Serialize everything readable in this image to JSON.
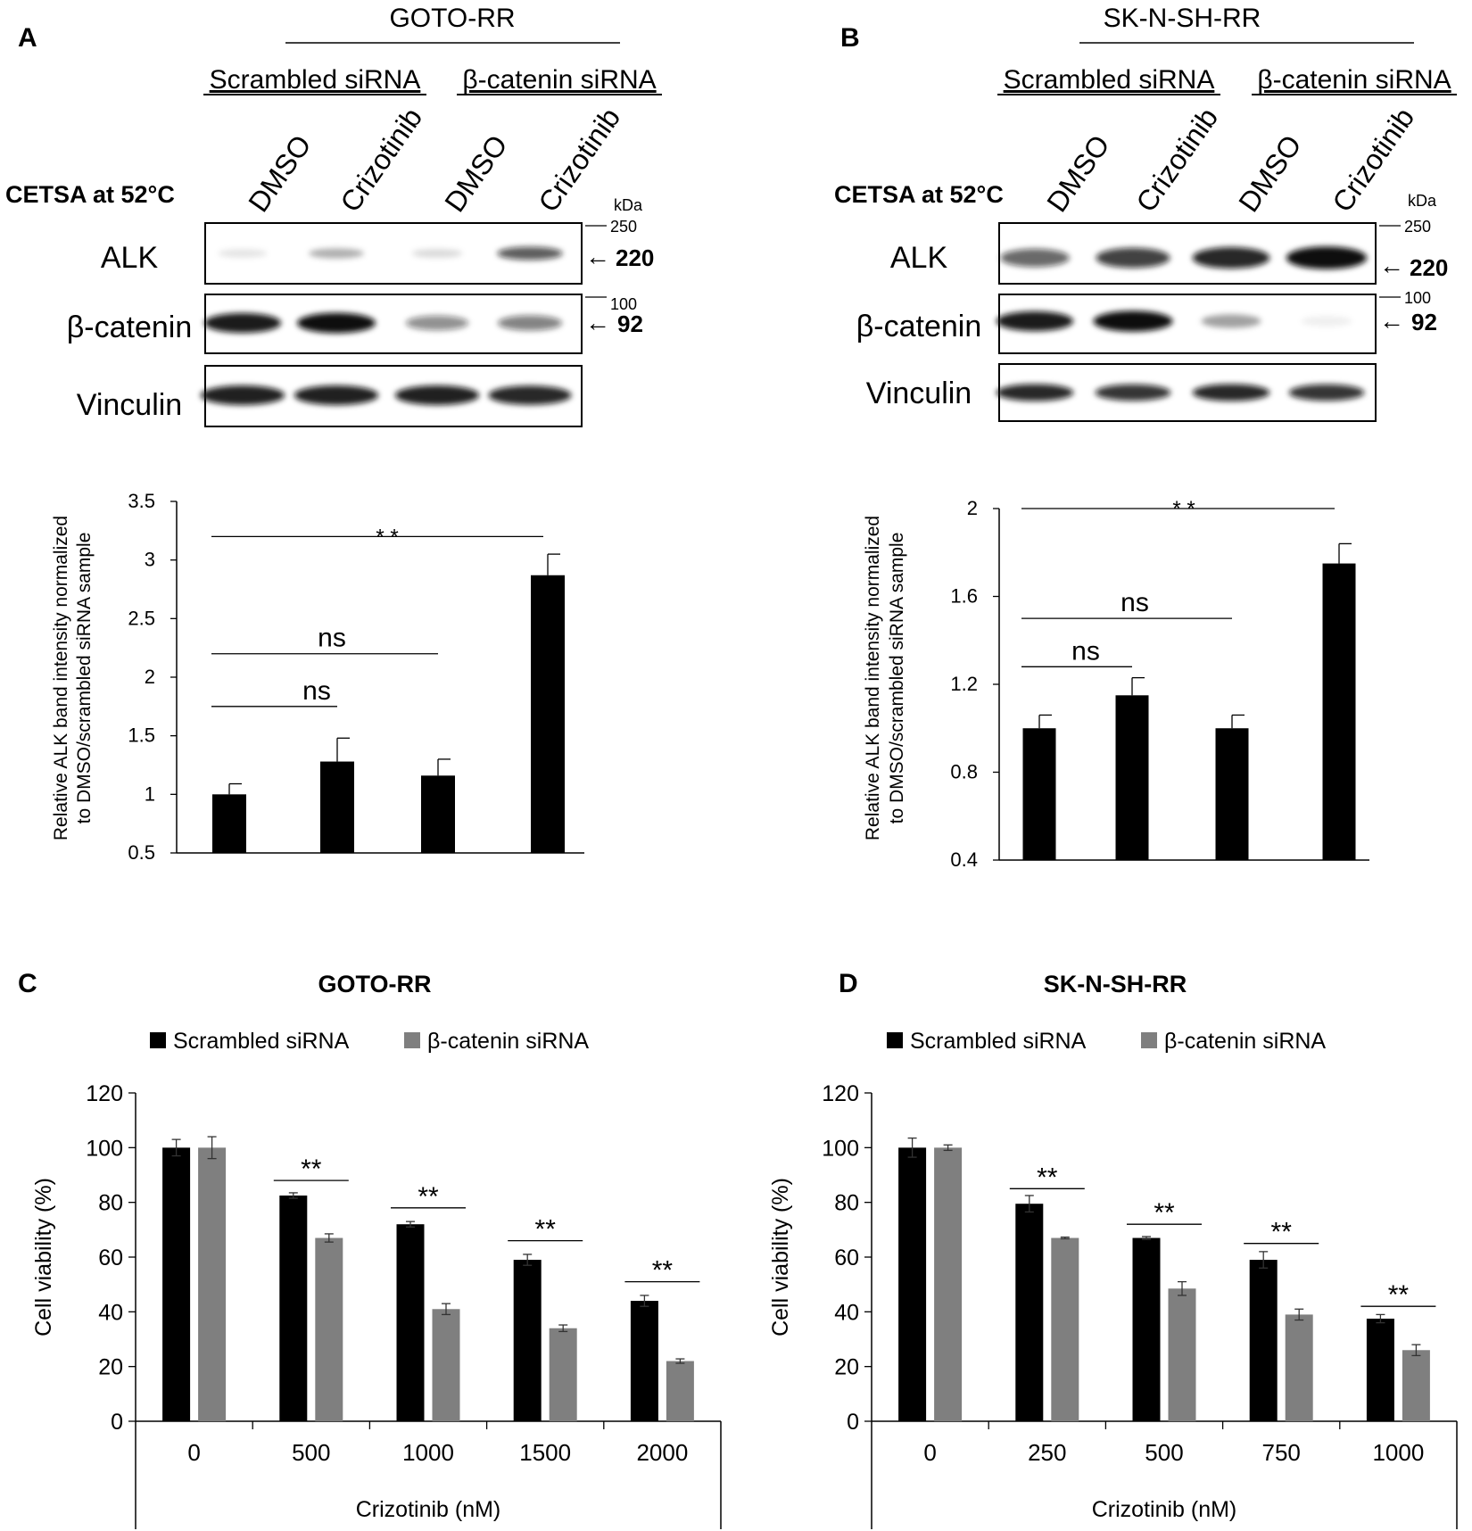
{
  "colors": {
    "black": "#000000",
    "gray": "#7f7f7f",
    "band": "#111111"
  },
  "panelA": {
    "letter": "A",
    "cell_line": "GOTO-RR",
    "group1": "Scrambled siRNA",
    "group2": "β-catenin siRNA",
    "lanes": [
      "DMSO",
      "Crizotinib",
      "DMSO",
      "Crizotinib"
    ],
    "cetsa_label": "CETSA at 52°C",
    "kda": "kDa",
    "blots": [
      {
        "label": "ALK",
        "marker": "250",
        "size": "220",
        "intensities": [
          0.1,
          0.3,
          0.14,
          0.65
        ]
      },
      {
        "label": "β-catenin",
        "marker": "100",
        "size": "92",
        "intensities": [
          0.9,
          0.95,
          0.45,
          0.5
        ]
      },
      {
        "label": "Vinculin",
        "marker": "",
        "size": "",
        "intensities": [
          0.88,
          0.88,
          0.88,
          0.85
        ]
      }
    ]
  },
  "panelB": {
    "letter": "B",
    "cell_line": "SK-N-SH-RR",
    "group1": "Scrambled siRNA",
    "group2": "β-catenin siRNA",
    "lanes": [
      "DMSO",
      "Crizotinib",
      "DMSO",
      "Crizotinib"
    ],
    "cetsa_label": "CETSA at 52°C",
    "kda": "kDa",
    "blots": [
      {
        "label": "ALK",
        "marker": "250",
        "size": "220",
        "intensities": [
          0.6,
          0.75,
          0.85,
          0.95
        ]
      },
      {
        "label": "β-catenin",
        "marker": "100",
        "size": "92",
        "intensities": [
          0.9,
          0.98,
          0.35,
          0.06
        ]
      },
      {
        "label": "Vinculin",
        "marker": "",
        "size": "",
        "intensities": [
          0.85,
          0.8,
          0.85,
          0.8
        ]
      }
    ]
  },
  "chart_data": [
    {
      "id": "A-chart",
      "type": "bar",
      "title": "",
      "xlabel": "",
      "ylabel": [
        "Relative ALK band intensity normalized",
        "to DMSO/scrambled siRNA sample"
      ],
      "categories": [
        "DMSO (Scrambled siRNA)",
        "Crizotinib (Scrambled siRNA)",
        "DMSO (β-catenin siRNA)",
        "Crizotinib (β-catenin siRNA)"
      ],
      "values": [
        1.0,
        1.28,
        1.16,
        2.87
      ],
      "errors": [
        0.09,
        0.2,
        0.14,
        0.18
      ],
      "ylim": [
        0.5,
        3.5
      ],
      "yticks": [
        0.5,
        1,
        1.5,
        2,
        2.5,
        3,
        3.5
      ],
      "ytick_labels": [
        "0.5",
        "1",
        "1.5",
        "2",
        "2.5",
        "3",
        "3.5"
      ],
      "significance": [
        {
          "from": 0,
          "to": 1,
          "label": "ns",
          "y": 1.75
        },
        {
          "from": 0,
          "to": 2,
          "label": "ns",
          "y": 2.2
        },
        {
          "from": 0,
          "to": 3,
          "label": "* *",
          "y": 3.2
        }
      ]
    },
    {
      "id": "B-chart",
      "type": "bar",
      "title": "",
      "xlabel": "",
      "ylabel": [
        "Relative ALK band intensity normalized",
        "to DMSO/scrambled siRNA sample"
      ],
      "categories": [
        "DMSO (Scrambled siRNA)",
        "Crizotinib (Scrambled siRNA)",
        "DMSO (β-catenin siRNA)",
        "Crizotinib (β-catenin siRNA)"
      ],
      "values": [
        1.0,
        1.15,
        1.0,
        1.75
      ],
      "errors": [
        0.06,
        0.08,
        0.06,
        0.09
      ],
      "ylim": [
        0.4,
        2.0
      ],
      "yticks": [
        0.4,
        0.8,
        1.2,
        1.6,
        2.0
      ],
      "ytick_labels": [
        "0.4",
        "0.8",
        "1.2",
        "1.6",
        "2"
      ],
      "significance": [
        {
          "from": 0,
          "to": 1,
          "label": "ns",
          "y": 1.28
        },
        {
          "from": 0,
          "to": 2,
          "label": "ns",
          "y": 1.5
        },
        {
          "from": 0,
          "to": 3,
          "label": "* *",
          "y": 2.0
        }
      ]
    },
    {
      "id": "C-chart",
      "type": "bar",
      "letter": "C",
      "title": "GOTO-RR",
      "xlabel": "Crizotinib (nM)",
      "ylabel": "Cell viability (%)",
      "categories": [
        "0",
        "500",
        "1000",
        "1500",
        "2000"
      ],
      "series": [
        {
          "name": "Scrambled siRNA",
          "color": "#000000",
          "values": [
            100,
            82.5,
            72,
            59,
            44
          ],
          "errors": [
            3,
            1,
            1,
            2,
            2
          ]
        },
        {
          "name": "β-catenin siRNA",
          "color": "#7f7f7f",
          "values": [
            100,
            67,
            41,
            34,
            22
          ],
          "errors": [
            4,
            1.5,
            2,
            1.2,
            0.8
          ]
        }
      ],
      "ylim": [
        0,
        120
      ],
      "yticks": [
        0,
        20,
        40,
        60,
        80,
        100,
        120
      ],
      "ytick_labels": [
        "0",
        "20",
        "40",
        "60",
        "80",
        "100",
        "120"
      ],
      "significance": [
        {
          "category": 1,
          "label": "**",
          "y": 88
        },
        {
          "category": 2,
          "label": "**",
          "y": 78
        },
        {
          "category": 3,
          "label": "**",
          "y": 66
        },
        {
          "category": 4,
          "label": "**",
          "y": 51
        }
      ],
      "legend": "top"
    },
    {
      "id": "D-chart",
      "type": "bar",
      "letter": "D",
      "title": "SK-N-SH-RR",
      "xlabel": "Crizotinib (nM)",
      "ylabel": "Cell viability (%)",
      "categories": [
        "0",
        "250",
        "500",
        "750",
        "1000"
      ],
      "series": [
        {
          "name": "Scrambled siRNA",
          "color": "#000000",
          "values": [
            100,
            79.5,
            67,
            59,
            37.5
          ],
          "errors": [
            3.5,
            3,
            0.5,
            3,
            1.5
          ]
        },
        {
          "name": "β-catenin siRNA",
          "color": "#7f7f7f",
          "values": [
            100,
            67,
            48.5,
            39,
            26
          ],
          "errors": [
            1,
            0.3,
            2.5,
            2,
            2
          ]
        }
      ],
      "ylim": [
        0,
        120
      ],
      "yticks": [
        0,
        20,
        40,
        60,
        80,
        100,
        120
      ],
      "ytick_labels": [
        "0",
        "20",
        "40",
        "60",
        "80",
        "100",
        "120"
      ],
      "significance": [
        {
          "category": 1,
          "label": "**",
          "y": 85
        },
        {
          "category": 2,
          "label": "**",
          "y": 72
        },
        {
          "category": 3,
          "label": "**",
          "y": 65
        },
        {
          "category": 4,
          "label": "**",
          "y": 42
        }
      ],
      "legend": "top"
    }
  ]
}
